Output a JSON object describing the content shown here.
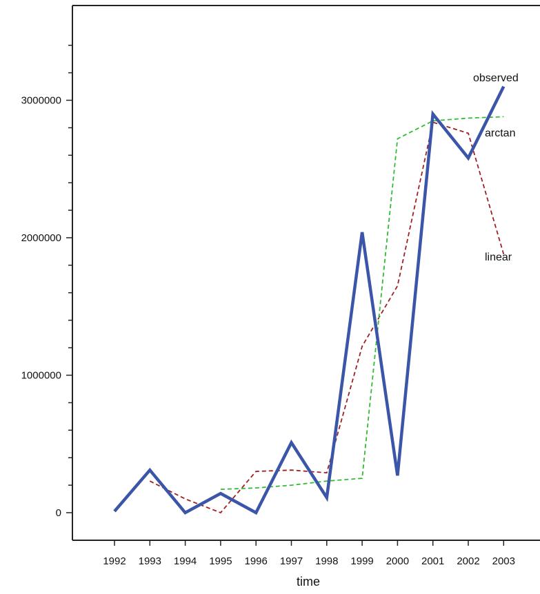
{
  "chart_data": {
    "type": "line",
    "title": "",
    "xlabel": "time",
    "ylabel": "",
    "categories": [
      "1992",
      "1993",
      "1994",
      "1995",
      "1996",
      "1997",
      "1998",
      "1999",
      "2000",
      "2001",
      "2002",
      "2003"
    ],
    "ylim": [
      -200000,
      3500000
    ],
    "yticks": [
      0,
      1000000,
      2000000,
      3000000
    ],
    "ytick_labels": [
      "0",
      "1000000",
      "2000000",
      "3000000"
    ],
    "grid": false,
    "legend": "none",
    "series": [
      {
        "name": "linear",
        "style": "dashed",
        "color": "#a02020",
        "values": [
          null,
          230000,
          100000,
          0,
          300000,
          310000,
          290000,
          1210000,
          1650000,
          2840000,
          2760000,
          1880000
        ]
      },
      {
        "name": "arctan",
        "style": "dashed",
        "color": "#33bb33",
        "values": [
          null,
          null,
          null,
          170000,
          180000,
          200000,
          230000,
          250000,
          2720000,
          2850000,
          2870000,
          2880000
        ]
      },
      {
        "name": "observed",
        "style": "solid",
        "color": "#3b55a8",
        "values": [
          10000,
          310000,
          0,
          140000,
          0,
          510000,
          110000,
          2040000,
          270000,
          2900000,
          2580000,
          3100000
        ]
      }
    ],
    "annotations": [
      {
        "text": "observed",
        "series": "observed"
      },
      {
        "text": "arctan",
        "series": "arctan"
      },
      {
        "text": "linear",
        "series": "linear"
      }
    ]
  }
}
